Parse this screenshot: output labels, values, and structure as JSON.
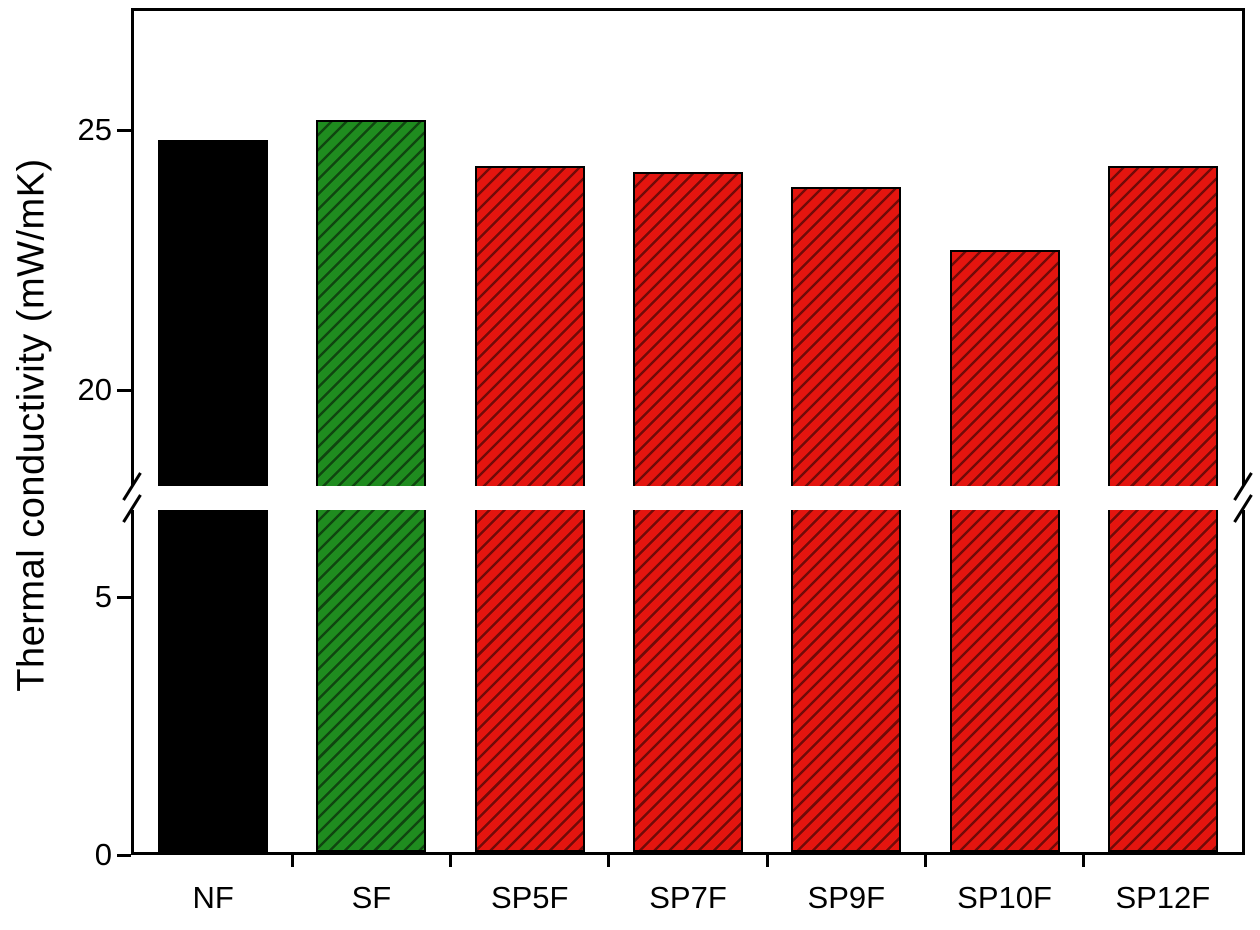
{
  "chart_data": {
    "type": "bar",
    "title": "",
    "xlabel": "",
    "ylabel": "Thermal conductivity (mW/mK)",
    "categories": [
      "NF",
      "SF",
      "SP5F",
      "SP7F",
      "SP9F",
      "SP10F",
      "SP12F"
    ],
    "values": [
      24.8,
      25.2,
      24.3,
      24.2,
      23.9,
      22.7,
      24.3
    ],
    "bar_styles": [
      {
        "fill": "#000000",
        "hatch": false
      },
      {
        "fill": "#1f8c1f",
        "hatch": true
      },
      {
        "fill": "#e4150f",
        "hatch": true
      },
      {
        "fill": "#e4150f",
        "hatch": true
      },
      {
        "fill": "#e4150f",
        "hatch": true
      },
      {
        "fill": "#e4150f",
        "hatch": true
      },
      {
        "fill": "#e4150f",
        "hatch": true
      }
    ],
    "axis_break": {
      "lower_max": 6.7,
      "upper_min": 18.1
    },
    "y_ticks_upper": [
      20,
      25
    ],
    "y_ticks_lower": [
      0,
      5
    ],
    "ylim": [
      0,
      27.3
    ],
    "grid": false,
    "legend": false,
    "axis_color": "#000000"
  }
}
